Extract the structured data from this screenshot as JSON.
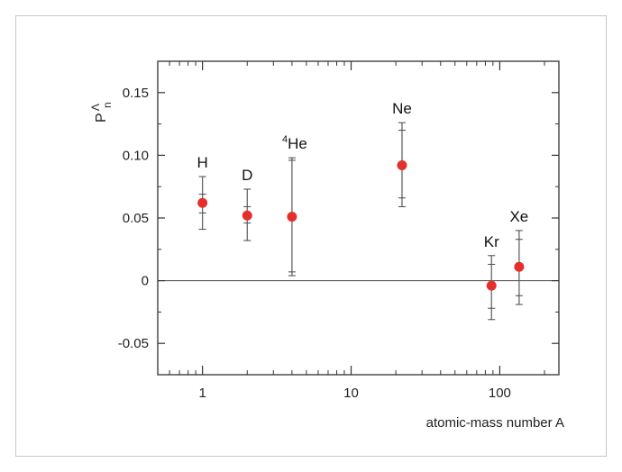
{
  "chart_data": {
    "type": "scatter",
    "title": "",
    "xlabel": "atomic-mass number A",
    "ylabel": "P_n^Λ",
    "ylabel_main": "P",
    "ylabel_sub": "n",
    "ylabel_sup": "Λ",
    "x_scale": "log",
    "xlim": [
      0.5,
      250
    ],
    "ylim": [
      -0.075,
      0.175
    ],
    "x_ticks": [
      {
        "value": 1,
        "label": "1"
      },
      {
        "value": 10,
        "label": "10"
      },
      {
        "value": 100,
        "label": "100"
      }
    ],
    "y_ticks": [
      {
        "value": 0.15,
        "label": "0.15"
      },
      {
        "value": 0.1,
        "label": "0.10"
      },
      {
        "value": 0.05,
        "label": "0.05"
      },
      {
        "value": 0,
        "label": "0"
      },
      {
        "value": -0.05,
        "label": "-0.05"
      }
    ],
    "zero_line": true,
    "marker_color": "#e3302a",
    "errorbar_color": "#666666",
    "points": [
      {
        "label": "H",
        "x": 1,
        "y": 0.062,
        "stat_lo": 0.054,
        "stat_hi": 0.069,
        "tot_lo": 0.041,
        "tot_hi": 0.083
      },
      {
        "label": "D",
        "x": 2,
        "y": 0.052,
        "stat_lo": 0.046,
        "stat_hi": 0.059,
        "tot_lo": 0.032,
        "tot_hi": 0.073
      },
      {
        "label": "He",
        "label_sup": "4",
        "x": 4,
        "y": 0.051,
        "stat_lo": 0.007,
        "stat_hi": 0.096,
        "tot_lo": 0.004,
        "tot_hi": 0.098
      },
      {
        "label": "Ne",
        "x": 22,
        "y": 0.092,
        "stat_lo": 0.066,
        "stat_hi": 0.12,
        "tot_lo": 0.059,
        "tot_hi": 0.126
      },
      {
        "label": "Kr",
        "x": 88,
        "y": -0.004,
        "stat_lo": -0.022,
        "stat_hi": 0.013,
        "tot_lo": -0.031,
        "tot_hi": 0.02
      },
      {
        "label": "Xe",
        "x": 135,
        "y": 0.011,
        "stat_lo": -0.012,
        "stat_hi": 0.033,
        "tot_lo": -0.019,
        "tot_hi": 0.04
      }
    ]
  }
}
